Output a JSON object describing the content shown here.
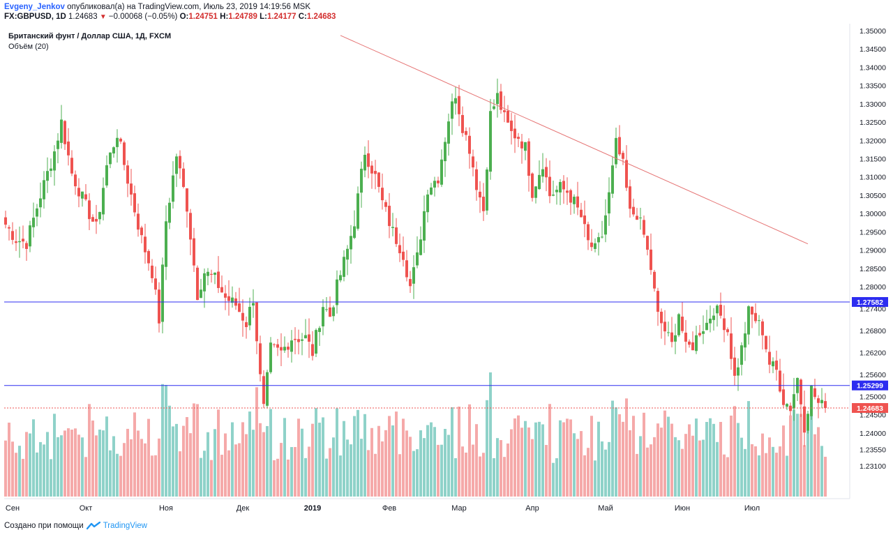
{
  "header": {
    "author": "Evgeny_Jenkov",
    "published_text": "опубликовал(а) на TradingView.com, Июль 23, 2019 14:19:56 MSK",
    "symbol": "FX:GBPUSD, 1D",
    "last": "1.24683",
    "change": "−0.00068 (−0.05%)",
    "o_label": "O:",
    "o": "1.24751",
    "h_label": "H:",
    "h": "1.24789",
    "l_label": "L:",
    "l": "1.24177",
    "c_label": "C:",
    "c": "1.24683"
  },
  "legend": {
    "title": "Британский фунт / Доллар США, 1Д, FXCM",
    "volume": "Объём (20)"
  },
  "footer": {
    "created": "Создано при помощи",
    "brand": "TradingView"
  },
  "colors": {
    "up": "#4caf50",
    "down": "#ef5350",
    "vol_up": "#8fd2c9",
    "vol_down": "#f5a9a9",
    "trendline": "#e57373",
    "level": "#2d2df0",
    "last_price": "#ef5350"
  },
  "chart_data": {
    "type": "candlestick",
    "symbol": "GBPUSD",
    "timeframe": "1D",
    "y_ticks": [
      "1.35000",
      "1.34500",
      "1.34000",
      "1.33500",
      "1.33000",
      "1.32500",
      "1.32000",
      "1.31500",
      "1.31000",
      "1.30500",
      "1.30000",
      "1.29500",
      "1.29000",
      "1.28500",
      "1.28000",
      "1.27400",
      "1.26800",
      "1.26200",
      "1.25600",
      "1.25000",
      "1.24500",
      "1.24000",
      "1.23550",
      "1.23100"
    ],
    "ylim": [
      1.231,
      1.35
    ],
    "x_labels": [
      {
        "label": "Сен",
        "bar": 0
      },
      {
        "label": "Окт",
        "bar": 21
      },
      {
        "label": "Ноя",
        "bar": 44
      },
      {
        "label": "Дек",
        "bar": 66
      },
      {
        "label": "2019",
        "bar": 86
      },
      {
        "label": "Фев",
        "bar": 108
      },
      {
        "label": "Мар",
        "bar": 128
      },
      {
        "label": "Апр",
        "bar": 149
      },
      {
        "label": "Май",
        "bar": 170
      },
      {
        "label": "Июн",
        "bar": 192
      },
      {
        "label": "Июл",
        "bar": 212
      }
    ],
    "levels": [
      {
        "value": 1.27582,
        "label": "1.27582"
      },
      {
        "value": 1.25299,
        "label": "1.25299"
      }
    ],
    "last_price": {
      "value": 1.24683,
      "label": "1.24683"
    },
    "trendline": {
      "from": {
        "bar": 96,
        "price": 1.3487
      },
      "to": {
        "bar": 230,
        "price": 1.2917
      }
    },
    "close_waypoints": [
      {
        "bar": 0,
        "price": 1.297
      },
      {
        "bar": 3,
        "price": 1.293
      },
      {
        "bar": 6,
        "price": 1.292
      },
      {
        "bar": 10,
        "price": 1.305
      },
      {
        "bar": 14,
        "price": 1.317
      },
      {
        "bar": 16,
        "price": 1.325
      },
      {
        "bar": 19,
        "price": 1.311
      },
      {
        "bar": 23,
        "price": 1.302
      },
      {
        "bar": 26,
        "price": 1.296
      },
      {
        "bar": 29,
        "price": 1.313
      },
      {
        "bar": 32,
        "price": 1.322
      },
      {
        "bar": 36,
        "price": 1.305
      },
      {
        "bar": 39,
        "price": 1.293
      },
      {
        "bar": 42,
        "price": 1.284
      },
      {
        "bar": 44,
        "price": 1.271
      },
      {
        "bar": 46,
        "price": 1.298
      },
      {
        "bar": 49,
        "price": 1.316
      },
      {
        "bar": 52,
        "price": 1.302
      },
      {
        "bar": 55,
        "price": 1.278
      },
      {
        "bar": 57,
        "price": 1.284
      },
      {
        "bar": 60,
        "price": 1.282
      },
      {
        "bar": 63,
        "price": 1.277
      },
      {
        "bar": 66,
        "price": 1.275
      },
      {
        "bar": 69,
        "price": 1.27
      },
      {
        "bar": 71,
        "price": 1.277
      },
      {
        "bar": 73,
        "price": 1.255
      },
      {
        "bar": 74,
        "price": 1.2465
      },
      {
        "bar": 76,
        "price": 1.263
      },
      {
        "bar": 79,
        "price": 1.262
      },
      {
        "bar": 82,
        "price": 1.266
      },
      {
        "bar": 86,
        "price": 1.266
      },
      {
        "bar": 88,
        "price": 1.262
      },
      {
        "bar": 91,
        "price": 1.275
      },
      {
        "bar": 93,
        "price": 1.272
      },
      {
        "bar": 95,
        "price": 1.28
      },
      {
        "bar": 98,
        "price": 1.29
      },
      {
        "bar": 100,
        "price": 1.298
      },
      {
        "bar": 103,
        "price": 1.317
      },
      {
        "bar": 106,
        "price": 1.31
      },
      {
        "bar": 108,
        "price": 1.303
      },
      {
        "bar": 111,
        "price": 1.295
      },
      {
        "bar": 114,
        "price": 1.289
      },
      {
        "bar": 116,
        "price": 1.28
      },
      {
        "bar": 118,
        "price": 1.288
      },
      {
        "bar": 121,
        "price": 1.307
      },
      {
        "bar": 124,
        "price": 1.31
      },
      {
        "bar": 127,
        "price": 1.326
      },
      {
        "bar": 129,
        "price": 1.333
      },
      {
        "bar": 131,
        "price": 1.324
      },
      {
        "bar": 133,
        "price": 1.318
      },
      {
        "bar": 135,
        "price": 1.308
      },
      {
        "bar": 137,
        "price": 1.301
      },
      {
        "bar": 139,
        "price": 1.327
      },
      {
        "bar": 141,
        "price": 1.332
      },
      {
        "bar": 143,
        "price": 1.326
      },
      {
        "bar": 145,
        "price": 1.322
      },
      {
        "bar": 147,
        "price": 1.321
      },
      {
        "bar": 149,
        "price": 1.318
      },
      {
        "bar": 151,
        "price": 1.306
      },
      {
        "bar": 154,
        "price": 1.314
      },
      {
        "bar": 156,
        "price": 1.305
      },
      {
        "bar": 159,
        "price": 1.307
      },
      {
        "bar": 161,
        "price": 1.306
      },
      {
        "bar": 163,
        "price": 1.303
      },
      {
        "bar": 165,
        "price": 1.299
      },
      {
        "bar": 167,
        "price": 1.292
      },
      {
        "bar": 169,
        "price": 1.29
      },
      {
        "bar": 171,
        "price": 1.294
      },
      {
        "bar": 173,
        "price": 1.305
      },
      {
        "bar": 175,
        "price": 1.319
      },
      {
        "bar": 177,
        "price": 1.313
      },
      {
        "bar": 179,
        "price": 1.3
      },
      {
        "bar": 181,
        "price": 1.3
      },
      {
        "bar": 183,
        "price": 1.294
      },
      {
        "bar": 185,
        "price": 1.285
      },
      {
        "bar": 187,
        "price": 1.272
      },
      {
        "bar": 189,
        "price": 1.268
      },
      {
        "bar": 191,
        "price": 1.264
      },
      {
        "bar": 193,
        "price": 1.273
      },
      {
        "bar": 195,
        "price": 1.263
      },
      {
        "bar": 197,
        "price": 1.264
      },
      {
        "bar": 199,
        "price": 1.268
      },
      {
        "bar": 201,
        "price": 1.27
      },
      {
        "bar": 203,
        "price": 1.274
      },
      {
        "bar": 205,
        "price": 1.272
      },
      {
        "bar": 207,
        "price": 1.268
      },
      {
        "bar": 209,
        "price": 1.255
      },
      {
        "bar": 211,
        "price": 1.263
      },
      {
        "bar": 213,
        "price": 1.273
      },
      {
        "bar": 215,
        "price": 1.271
      },
      {
        "bar": 217,
        "price": 1.268
      },
      {
        "bar": 219,
        "price": 1.259
      },
      {
        "bar": 221,
        "price": 1.257
      },
      {
        "bar": 223,
        "price": 1.249
      },
      {
        "bar": 225,
        "price": 1.247
      },
      {
        "bar": 227,
        "price": 1.255
      },
      {
        "bar": 229,
        "price": 1.242
      },
      {
        "bar": 231,
        "price": 1.252
      },
      {
        "bar": 233,
        "price": 1.248
      },
      {
        "bar": 235,
        "price": 1.24683
      }
    ],
    "bar_count": 236,
    "volume_label": "Объём (20)"
  }
}
